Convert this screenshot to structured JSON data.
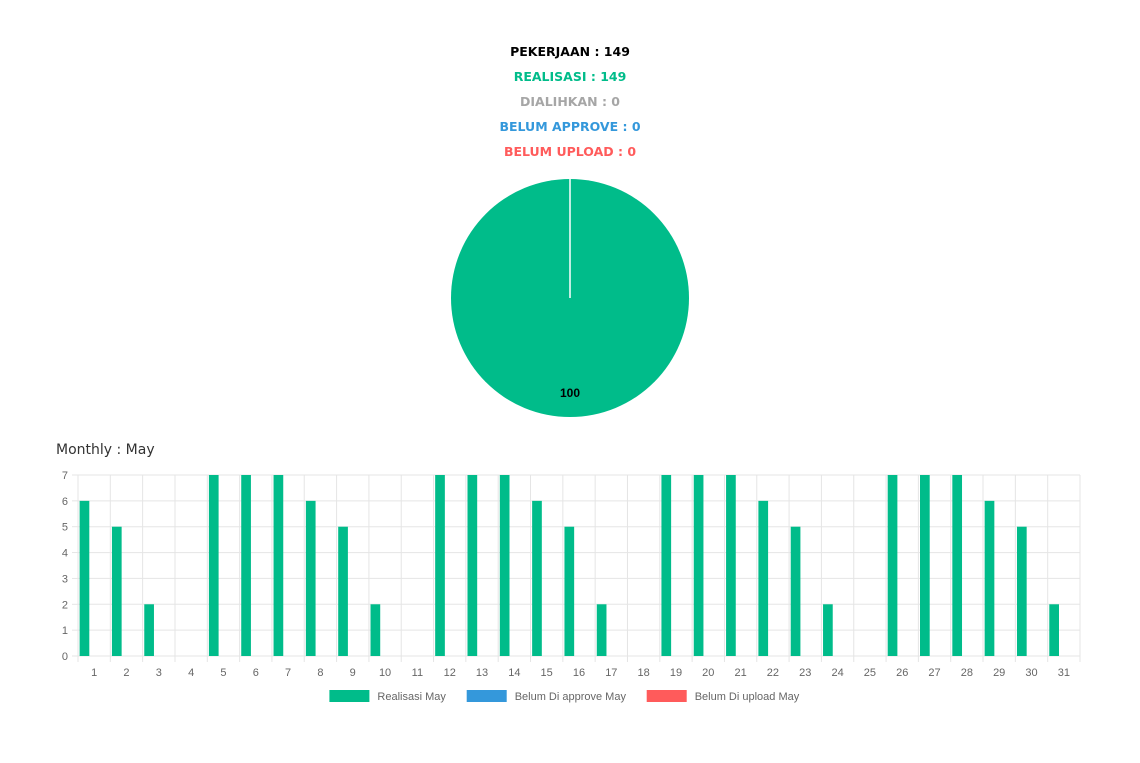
{
  "summary": {
    "pekerjaan": "PEKERJAAN : 149",
    "realisasi": "REALISASI : 149",
    "dialihkan": "DIALIHKAN : 0",
    "belum_approve": "BELUM APPROVE : 0",
    "belum_upload": "BELUM UPLOAD : 0"
  },
  "colors": {
    "pekerjaan": "#000000",
    "realisasi": "#00bc8a",
    "dialihkan": "#a6a6a6",
    "belum_approve": "#3498db",
    "belum_upload": "#ff5b5b",
    "grid": "#e5e5e5",
    "axis_text": "#666666"
  },
  "monthly_title": "Monthly : May",
  "chart_data": [
    {
      "type": "pie",
      "slices": [
        {
          "label": "Realisasi",
          "value": 100,
          "color": "#00bc8a"
        },
        {
          "label": "Belum Approve",
          "value": 0,
          "color": "#3498db"
        },
        {
          "label": "Belum Upload",
          "value": 0,
          "color": "#ff5b5b"
        }
      ],
      "data_label": "100"
    },
    {
      "type": "bar",
      "categories": [
        "1",
        "2",
        "3",
        "4",
        "5",
        "6",
        "7",
        "8",
        "9",
        "10",
        "11",
        "12",
        "13",
        "14",
        "15",
        "16",
        "17",
        "18",
        "19",
        "20",
        "21",
        "22",
        "23",
        "24",
        "25",
        "26",
        "27",
        "28",
        "29",
        "30",
        "31"
      ],
      "series": [
        {
          "name": "Realisasi May",
          "color": "#00bc8a",
          "values": [
            6,
            5,
            2,
            0,
            7,
            7,
            7,
            6,
            5,
            2,
            0,
            7,
            7,
            7,
            6,
            5,
            2,
            0,
            7,
            7,
            7,
            6,
            5,
            2,
            0,
            7,
            7,
            7,
            6,
            5,
            2
          ]
        },
        {
          "name": "Belum Di approve May",
          "color": "#3498db",
          "values": [
            0,
            0,
            0,
            0,
            0,
            0,
            0,
            0,
            0,
            0,
            0,
            0,
            0,
            0,
            0,
            0,
            0,
            0,
            0,
            0,
            0,
            0,
            0,
            0,
            0,
            0,
            0,
            0,
            0,
            0,
            0
          ]
        },
        {
          "name": "Belum Di upload May",
          "color": "#ff5b5b",
          "values": [
            0,
            0,
            0,
            0,
            0,
            0,
            0,
            0,
            0,
            0,
            0,
            0,
            0,
            0,
            0,
            0,
            0,
            0,
            0,
            0,
            0,
            0,
            0,
            0,
            0,
            0,
            0,
            0,
            0,
            0,
            0
          ]
        }
      ],
      "ylim": [
        0,
        7
      ],
      "yticks": [
        "0",
        "1",
        "2",
        "3",
        "4",
        "5",
        "6",
        "7"
      ],
      "grid": true,
      "legend": "bottom"
    }
  ]
}
